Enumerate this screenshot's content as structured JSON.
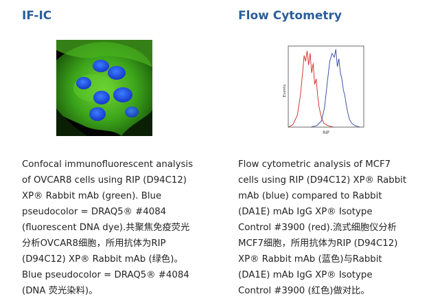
{
  "left_panel": {
    "heading": "IF-IC",
    "caption_lines": [
      "Confocal immunofluorescent analysis",
      "of OVCAR8 cells using RIP (D94C12)",
      "XP® Rabbit mAb (green). Blue",
      "pseudocolor = DRAQ5® #4084",
      "(fluorescent DNA dye).共聚焦免疫荧光",
      "分析OVCAR8细胞，所用抗体为RIP",
      "(D94C12) XP® Rabbit mAb (绿色)。",
      "Blue pseudocolor = DRAQ5® #4084",
      "(DNA 荧光染料)。"
    ]
  },
  "right_panel": {
    "heading": "Flow Cytometry",
    "caption_lines": [
      "Flow cytometric analysis of MCF7",
      "cells using RIP (D94C12) XP® Rabbit",
      "mAb (blue) compared to Rabbit",
      "(DA1E) mAb IgG XP® Isotype",
      "Control #3900 (red).流式细胞仪分析",
      "MCF7细胞，所用抗体为RIP (D94C12)",
      "XP® Rabbit mAb (蓝色)与Rabbit",
      "(DA1E) mAb IgG XP® Isotype",
      "Control #3900 (红色)做对比。"
    ]
  },
  "chart_data": {
    "type": "line",
    "xlabel": "RIP",
    "ylabel": "Events",
    "grid": false,
    "legend": "none",
    "series": [
      {
        "color": "#d42020",
        "x": [
          0.0,
          0.06,
          0.12,
          0.16,
          0.19,
          0.21,
          0.23,
          0.25,
          0.27,
          0.29,
          0.31,
          0.33,
          0.35,
          0.37,
          0.39,
          0.41,
          0.44,
          0.47,
          0.52,
          0.6
        ],
        "y": [
          0.0,
          0.03,
          0.15,
          0.4,
          0.7,
          0.92,
          0.85,
          0.98,
          0.8,
          0.95,
          0.7,
          0.82,
          0.55,
          0.62,
          0.4,
          0.25,
          0.12,
          0.05,
          0.02,
          0.0
        ]
      },
      {
        "color": "#2a3fa0",
        "x": [
          0.3,
          0.38,
          0.44,
          0.48,
          0.52,
          0.55,
          0.58,
          0.61,
          0.63,
          0.65,
          0.67,
          0.69,
          0.71,
          0.73,
          0.75,
          0.77,
          0.79,
          0.81,
          0.84,
          0.88,
          0.95
        ],
        "y": [
          0.0,
          0.02,
          0.08,
          0.25,
          0.6,
          0.85,
          0.95,
          0.9,
          1.0,
          0.78,
          0.88,
          0.7,
          0.62,
          0.48,
          0.4,
          0.28,
          0.18,
          0.1,
          0.05,
          0.02,
          0.0
        ]
      }
    ]
  }
}
